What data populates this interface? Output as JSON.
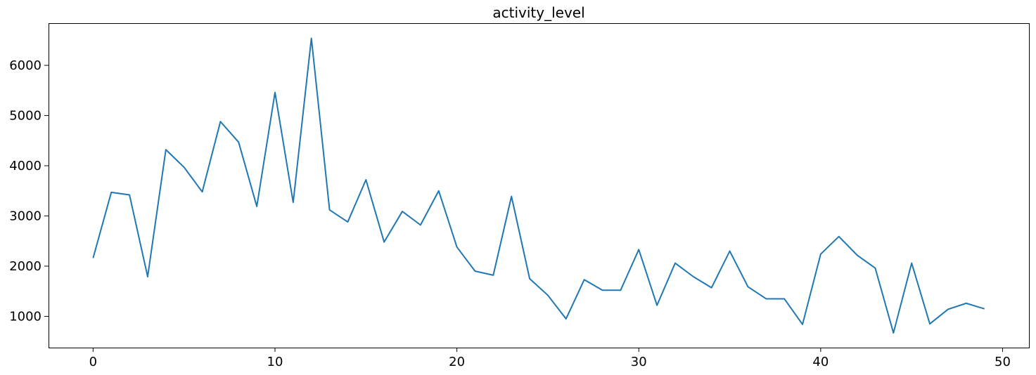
{
  "chart_data": {
    "type": "line",
    "title": "activity_level",
    "xlabel": "",
    "ylabel": "",
    "xlim": [
      -2.45,
      51.45
    ],
    "ylim": [
      377,
      6840
    ],
    "xticks": [
      0,
      10,
      20,
      30,
      40,
      50
    ],
    "yticks": [
      1000,
      2000,
      3000,
      4000,
      5000,
      6000
    ],
    "grid": false,
    "legend": "none",
    "series": [
      {
        "color": "#1f77b4",
        "x": [
          0,
          1,
          2,
          3,
          4,
          5,
          6,
          7,
          8,
          9,
          10,
          11,
          12,
          13,
          14,
          15,
          16,
          17,
          18,
          19,
          20,
          21,
          22,
          23,
          24,
          25,
          26,
          27,
          28,
          29,
          30,
          31,
          32,
          33,
          34,
          35,
          36,
          37,
          38,
          39,
          40,
          41,
          42,
          43,
          44,
          45,
          46,
          47,
          48,
          49
        ],
        "values": [
          2160,
          3470,
          3420,
          1790,
          4320,
          3970,
          3480,
          4880,
          4470,
          3190,
          5460,
          3270,
          6540,
          3120,
          2880,
          3720,
          2480,
          3090,
          2820,
          3500,
          2380,
          1900,
          1820,
          3390,
          1750,
          1420,
          950,
          1730,
          1520,
          1520,
          2330,
          1220,
          2060,
          1790,
          1570,
          2300,
          1590,
          1350,
          1350,
          840,
          2240,
          2590,
          2220,
          1960,
          670,
          2060,
          850,
          1140,
          1260,
          1150
        ]
      }
    ]
  }
}
